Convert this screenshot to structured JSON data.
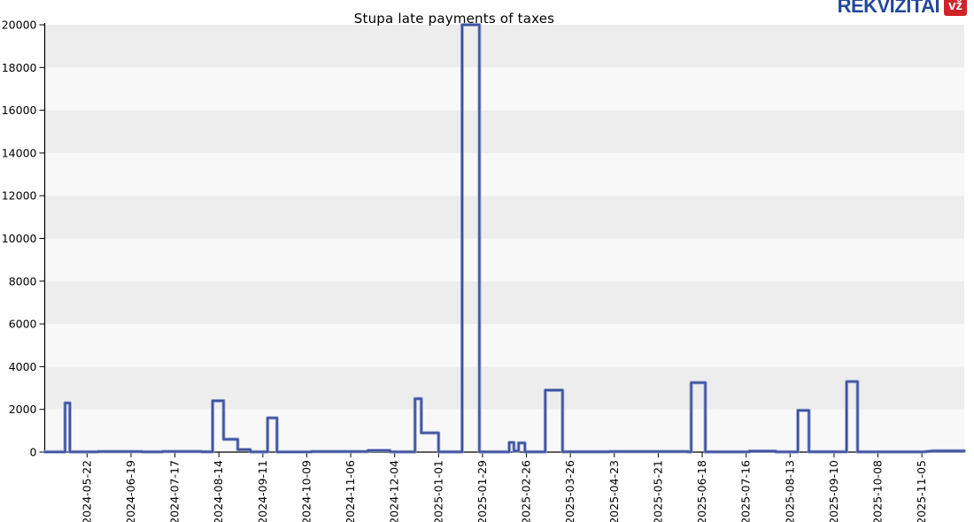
{
  "page": {
    "title": "Stupa late payments of taxes"
  },
  "logo": {
    "text": "REKVIZITAI",
    "badge": "vž",
    "text_color": "#24489b",
    "badge_bg": "#d2232a",
    "badge_text_color": "#ffffff"
  },
  "chart_data": {
    "type": "line",
    "title": "Stupa late payments of taxes",
    "xlabel": "",
    "ylabel": "",
    "ylim": [
      0,
      20000
    ],
    "yticks": [
      0,
      2000,
      4000,
      6000,
      8000,
      10000,
      12000,
      14000,
      16000,
      18000,
      20000
    ],
    "xticklabels": [
      "2024-05-22",
      "2024-06-19",
      "2024-07-17",
      "2024-08-14",
      "2024-09-11",
      "2024-10-09",
      "2024-11-06",
      "2024-12-04",
      "2025-01-01",
      "2025-01-29",
      "2025-02-26",
      "2025-03-26",
      "2025-04-23",
      "2025-05-21",
      "2025-06-18",
      "2025-07-16",
      "2025-08-13",
      "2025-09-10",
      "2025-10-08",
      "2025-11-05"
    ],
    "x_axis": {
      "domain_start_date": "2024-04-25",
      "first_tick_day": 27,
      "tick_interval_days": 28,
      "total_days": 586
    },
    "grid": "alternating horizontal bands every 2000",
    "legend": "none",
    "band_color_light": "#f8f8f9",
    "band_color_dark": "#ededee",
    "axis_color": "#000000",
    "series": [
      {
        "name": "late payments of taxes",
        "color": "#3d519e",
        "halo_color": "#8費9cce",
        "points_day_value": [
          [
            0,
            10
          ],
          [
            13,
            10
          ],
          [
            13,
            2300
          ],
          [
            16,
            2300
          ],
          [
            16,
            12
          ],
          [
            34,
            12
          ],
          [
            34,
            25
          ],
          [
            62,
            25
          ],
          [
            62,
            12
          ],
          [
            75,
            12
          ],
          [
            75,
            30
          ],
          [
            100,
            30
          ],
          [
            100,
            15
          ],
          [
            107,
            15
          ],
          [
            107,
            2400
          ],
          [
            114,
            2400
          ],
          [
            114,
            600
          ],
          [
            123,
            600
          ],
          [
            123,
            120
          ],
          [
            131,
            120
          ],
          [
            131,
            12
          ],
          [
            142,
            12
          ],
          [
            142,
            1600
          ],
          [
            148,
            1600
          ],
          [
            148,
            10
          ],
          [
            170,
            10
          ],
          [
            170,
            25
          ],
          [
            206,
            25
          ],
          [
            206,
            80
          ],
          [
            220,
            80
          ],
          [
            220,
            12
          ],
          [
            236,
            12
          ],
          [
            236,
            2500
          ],
          [
            240,
            2500
          ],
          [
            240,
            900
          ],
          [
            251,
            900
          ],
          [
            251,
            12
          ],
          [
            266,
            12
          ],
          [
            266,
            20000
          ],
          [
            277,
            20000
          ],
          [
            277,
            12
          ],
          [
            296,
            12
          ],
          [
            296,
            450
          ],
          [
            299,
            450
          ],
          [
            299,
            60
          ],
          [
            302,
            60
          ],
          [
            302,
            430
          ],
          [
            306,
            430
          ],
          [
            306,
            12
          ],
          [
            319,
            12
          ],
          [
            319,
            2900
          ],
          [
            330,
            2900
          ],
          [
            330,
            15
          ],
          [
            360,
            15
          ],
          [
            360,
            25
          ],
          [
            410,
            25
          ],
          [
            410,
            12
          ],
          [
            412,
            12
          ],
          [
            412,
            3250
          ],
          [
            421,
            3250
          ],
          [
            421,
            12
          ],
          [
            449,
            12
          ],
          [
            449,
            45
          ],
          [
            466,
            45
          ],
          [
            466,
            12
          ],
          [
            480,
            12
          ],
          [
            480,
            1950
          ],
          [
            487,
            1950
          ],
          [
            487,
            15
          ],
          [
            511,
            15
          ],
          [
            511,
            3300
          ],
          [
            518,
            3300
          ],
          [
            518,
            12
          ],
          [
            560,
            12
          ],
          [
            566,
            60
          ],
          [
            586,
            60
          ]
        ]
      }
    ]
  }
}
